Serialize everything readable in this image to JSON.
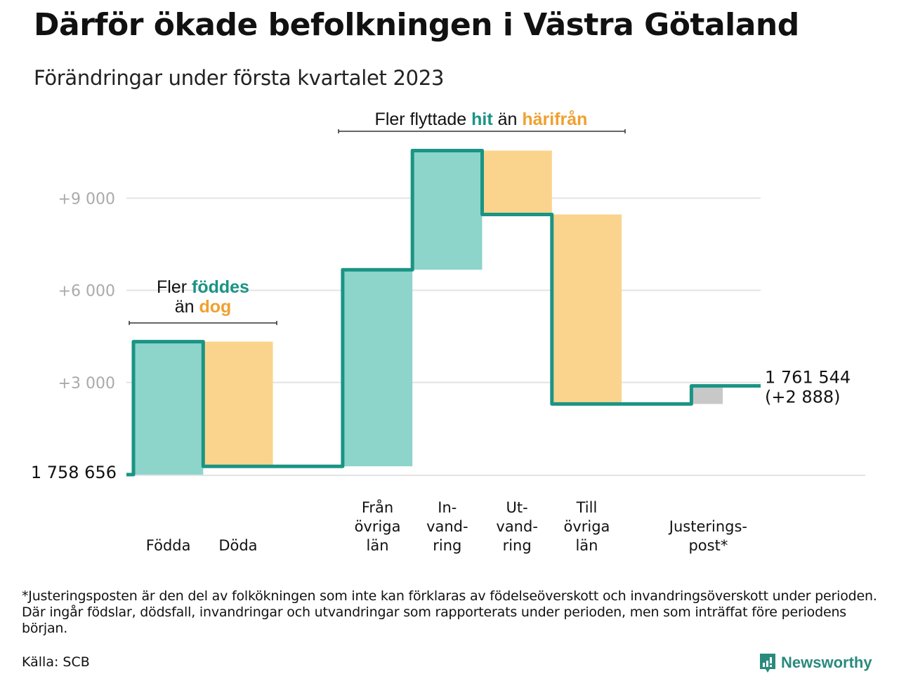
{
  "header": {
    "title": "Därför ökade befolkningen i Västra Götaland",
    "subtitle": "Förändringar under första kvartalet 2023"
  },
  "colors": {
    "increase_fill": "#8dd4cb",
    "decrease_fill": "#fad48d",
    "adjustment_fill": "#c8c8c8",
    "step_line": "#1a9484",
    "teal_text": "#1a9484",
    "orange_text": "#f0a030",
    "gridline": "#e3e3e3",
    "tick_text": "#aaaaaa"
  },
  "chart_data": {
    "type": "waterfall",
    "title": "Därför ökade befolkningen i Västra Götaland",
    "subtitle": "Förändringar under första kvartalet 2023",
    "start_value": 1758656,
    "start_label": "1 758 656",
    "end_value": 1761544,
    "end_label": "1 761 544",
    "end_change_label": "(+2 888)",
    "net_change": 2888,
    "yticks": [
      {
        "value": 3000,
        "label": "+3 000"
      },
      {
        "value": 6000,
        "label": "+6 000"
      },
      {
        "value": 9000,
        "label": "+9 000"
      }
    ],
    "ylim": [
      0,
      11000
    ],
    "grid": true,
    "steps": [
      {
        "category": "Födda",
        "label_lines": [
          "Födda"
        ],
        "value": 4330,
        "kind": "increase",
        "slot": 0
      },
      {
        "category": "Döda",
        "label_lines": [
          "Döda"
        ],
        "value": -4060,
        "kind": "decrease",
        "slot": 1
      },
      {
        "category": "Från övriga län",
        "label_lines": [
          "Från",
          "övriga",
          "län"
        ],
        "value": 6400,
        "kind": "increase",
        "slot": 3
      },
      {
        "category": "Invandring",
        "label_lines": [
          "In-",
          "vand-",
          "ring"
        ],
        "value": 3880,
        "kind": "increase",
        "slot": 4
      },
      {
        "category": "Utvandring",
        "label_lines": [
          "Ut-",
          "vand-",
          "ring"
        ],
        "value": -2080,
        "kind": "decrease",
        "slot": 5
      },
      {
        "category": "Till övriga län",
        "label_lines": [
          "Till",
          "övriga",
          "län"
        ],
        "value": -6170,
        "kind": "decrease",
        "slot": 6
      },
      {
        "category": "Justeringspost*",
        "label_lines": [
          "Justerings-",
          "post*"
        ],
        "value": 588,
        "kind": "adjustment",
        "slot": 8
      }
    ],
    "annotations": [
      {
        "id": "births",
        "lines": [
          [
            {
              "text": "Fler ",
              "style": "plain"
            },
            {
              "text": "föddes",
              "style": "teal"
            }
          ],
          [
            {
              "text": "än ",
              "style": "plain"
            },
            {
              "text": "dog",
              "style": "orange"
            }
          ]
        ],
        "spans_categories": [
          "Födda",
          "Döda"
        ]
      },
      {
        "id": "migration",
        "lines": [
          [
            {
              "text": "Fler flyttade ",
              "style": "plain"
            },
            {
              "text": "hit",
              "style": "teal"
            },
            {
              "text": " än ",
              "style": "plain"
            },
            {
              "text": "härifrån",
              "style": "orange"
            }
          ]
        ],
        "spans_categories": [
          "Från övriga län",
          "Invandring",
          "Utvandring",
          "Till övriga län"
        ]
      }
    ]
  },
  "footer": {
    "footnote": "*Justeringsposten är den del av folkökningen som inte kan förklaras av födelseöverskott och invandringsöverskott under perioden. Där ingår födslar, dödsfall, invandringar och utvandringar som rapporterats under perioden, men som inträffat före periodens början.",
    "source": "Källa: SCB",
    "brand": "Newsworthy",
    "brand_icon": "bar-chart-speech-bubble-icon"
  }
}
